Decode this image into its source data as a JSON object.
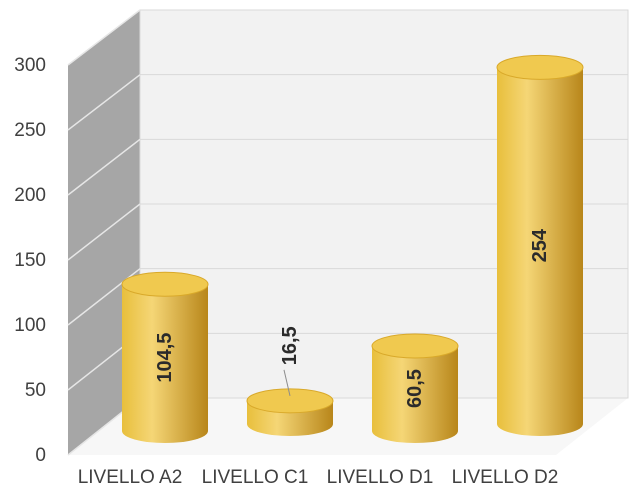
{
  "chart_data": {
    "type": "bar",
    "style": "3d-cylinder",
    "categories": [
      "LIVELLO A2",
      "LIVELLO C1",
      "LIVELLO D1",
      "LIVELLO D2"
    ],
    "values": [
      104.5,
      16.5,
      60.5,
      254
    ],
    "data_labels": [
      "104,5",
      "16,5",
      "60,5",
      "254"
    ],
    "y_ticks": [
      0,
      50,
      100,
      150,
      200,
      250,
      300
    ],
    "y_tick_labels": [
      "0",
      "50",
      "100",
      "150",
      "200",
      "250",
      "300"
    ],
    "ylim": [
      0,
      300
    ],
    "title": "",
    "xlabel": "",
    "ylabel": "",
    "grid": true,
    "legend": "none",
    "colors": {
      "bar_light": "#f5d676",
      "bar_mid": "#e8bf3c",
      "bar_dark": "#b8861a",
      "bar_top": "#f0c94f",
      "wall_side": "#a6a6a6",
      "wall_back": "#f2f2f2",
      "gridline": "#d9d9d9"
    }
  }
}
